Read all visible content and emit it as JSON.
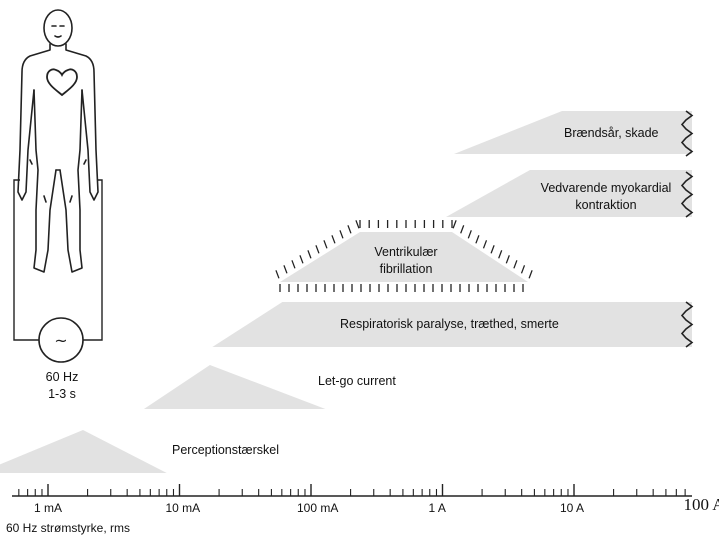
{
  "figure": {
    "source_label": {
      "freq": "60 Hz",
      "duration": "1-3 s"
    },
    "source_symbol": "~",
    "axis_title": "60 Hz strømstyrke, rms",
    "tick_labels": [
      {
        "label": "1 mA",
        "amps": 0.001
      },
      {
        "label": "10 mA",
        "amps": 0.01
      },
      {
        "label": "100 mA",
        "amps": 0.1
      },
      {
        "label": "1 A",
        "amps": 1
      },
      {
        "label": "10 A",
        "amps": 10
      },
      {
        "label": "100 A",
        "amps": 100
      }
    ],
    "regions": [
      {
        "id": "perception",
        "label": "Perceptionstærskel",
        "from_amps": 0.0003,
        "to_amps": 0.008,
        "shape": "triangle"
      },
      {
        "id": "letgo",
        "label": "Let-go current",
        "from_amps": 0.005,
        "to_amps": 0.12,
        "shape": "triangle"
      },
      {
        "id": "respiratory",
        "label": "Respiratorisk paralyse, træthed, smerte",
        "from_amps": 0.016,
        "to_amps": 100,
        "shape": "ramp-open"
      },
      {
        "id": "fibrillation",
        "label_line1": "Ventrikulær",
        "label_line2": "fibrillation",
        "from_amps": 0.06,
        "to_amps": 2.5,
        "shape": "hatched-trapezoid"
      },
      {
        "id": "myocardial",
        "label_line1": "Vedvarende myokardial",
        "label_line2": "kontraktion",
        "from_amps": 0.8,
        "to_amps": 100,
        "shape": "ramp-open"
      },
      {
        "id": "burns",
        "label": "Brændsår, skade",
        "from_amps": 0.9,
        "to_amps": 100,
        "shape": "ramp-open"
      }
    ],
    "colors": {
      "region_fill": "#e2e2e2",
      "line": "#222222",
      "background": "#ffffff"
    },
    "icons": [
      "human-body-icon",
      "heart-icon",
      "ac-source-icon",
      "break-zigzag-icon"
    ]
  }
}
